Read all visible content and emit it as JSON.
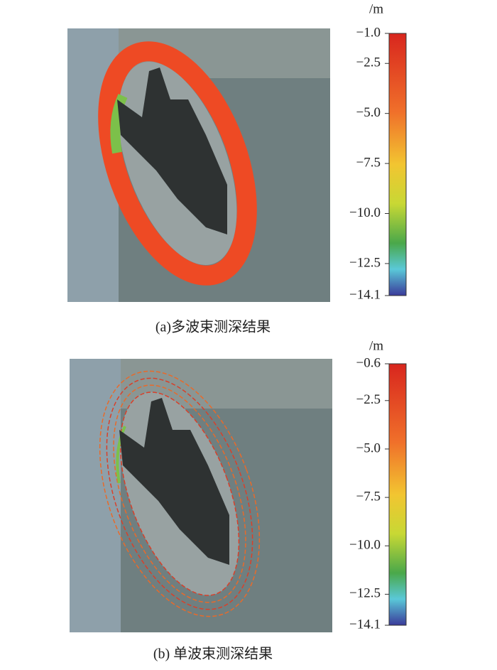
{
  "panels": [
    {
      "caption": "(a)多波束测深结果",
      "unit": "/m",
      "colorbar": {
        "range": [
          -14.1,
          -1.0
        ],
        "ticks": [
          {
            "value": -1.0,
            "label": "−1.0"
          },
          {
            "value": -2.5,
            "label": "−2.5"
          },
          {
            "value": -5.0,
            "label": "−5.0"
          },
          {
            "value": -7.5,
            "label": "−7.5"
          },
          {
            "value": -10.0,
            "label": "−10.0"
          },
          {
            "value": -12.5,
            "label": "−12.5"
          },
          {
            "value": -14.1,
            "label": "−14.1"
          }
        ]
      }
    },
    {
      "caption": "(b) 单波束测深结果",
      "unit": "/m",
      "colorbar": {
        "range": [
          -14.1,
          -0.6
        ],
        "ticks": [
          {
            "value": -0.6,
            "label": "−0.6"
          },
          {
            "value": -2.5,
            "label": "−2.5"
          },
          {
            "value": -5.0,
            "label": "−5.0"
          },
          {
            "value": -7.5,
            "label": "−7.5"
          },
          {
            "value": -10.0,
            "label": "−10.0"
          },
          {
            "value": -12.5,
            "label": "−12.5"
          },
          {
            "value": -14.1,
            "label": "−14.1"
          }
        ]
      }
    }
  ]
}
